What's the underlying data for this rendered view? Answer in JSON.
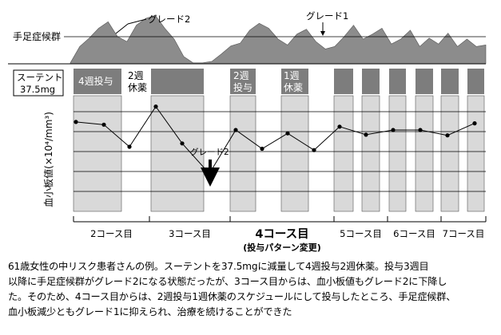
{
  "chart_data": {
    "type": "line",
    "ylabel": "血小板値(×10⁴/mm³)",
    "drug_label_line1": "スーテント",
    "drug_label_line2": "37.5mg",
    "hfs_label": "手足症候群",
    "hfs_annotations": [
      {
        "text": "グレード2"
      },
      {
        "text": "グレード1"
      }
    ],
    "platelet_annotation": "グレード2",
    "hfs_profile": [
      0.02,
      0.35,
      0.52,
      0.72,
      0.85,
      0.55,
      0.45,
      0.78,
      0.92,
      0.98,
      0.72,
      0.5,
      0.15,
      0.02,
      0.02,
      0.05,
      0.2,
      0.36,
      0.42,
      0.68,
      0.82,
      0.72,
      0.5,
      0.38,
      0.6,
      0.7,
      0.45,
      0.3,
      0.35,
      0.55,
      0.78,
      0.5,
      0.6,
      0.72,
      0.4,
      0.5,
      0.68,
      0.35,
      0.52,
      0.4,
      0.62,
      0.35,
      0.5,
      0.35,
      0.38
    ],
    "dosing_blocks": [
      {
        "label_line1": "4週投与",
        "label_line2": ""
      },
      {
        "label_line1": "2週",
        "label_line2": "休薬"
      },
      {
        "label_line1": "",
        "label_line2": ""
      },
      {
        "label_line1": "2週",
        "label_line2": "投与"
      },
      {
        "label_line1": "1週",
        "label_line2": "休薬"
      },
      {
        "label_line1": "",
        "label_line2": ""
      },
      {
        "label_line1": "",
        "label_line2": ""
      },
      {
        "label_line1": "",
        "label_line2": ""
      },
      {
        "label_line1": "",
        "label_line2": ""
      },
      {
        "label_line1": "",
        "label_line2": ""
      }
    ],
    "platelet_values": [
      0.62,
      0.58,
      0.25,
      0.85,
      0.3,
      -0.15,
      0.5,
      0.22,
      0.45,
      0.2,
      0.55,
      0.43,
      0.5,
      0.5,
      0.42,
      0.6
    ],
    "courses": [
      {
        "label": "2コース目"
      },
      {
        "label": "3コース目"
      },
      {
        "label": "4コース目",
        "sublabel": "(投与パターン変更)"
      },
      {
        "label": "5コース目"
      },
      {
        "label": "6コース目"
      },
      {
        "label": "7コース目"
      }
    ]
  },
  "caption": {
    "line1": "61歳女性の中リスク患者さんの例。スーテントを37.5mgに減量して4週投与2週休薬。投与3週目",
    "line2": "以降に手足症候群がグレード2になる状態だったが、3コース目からは、血小板値もグレード2に下降し",
    "line3": "た。そのため、4コース目からは、2週投与1週休薬のスケジュールにして投与したところ、手足症候群、",
    "line4": "血小板減少ともグレード1に抑えられ、治療を続けることができた"
  }
}
